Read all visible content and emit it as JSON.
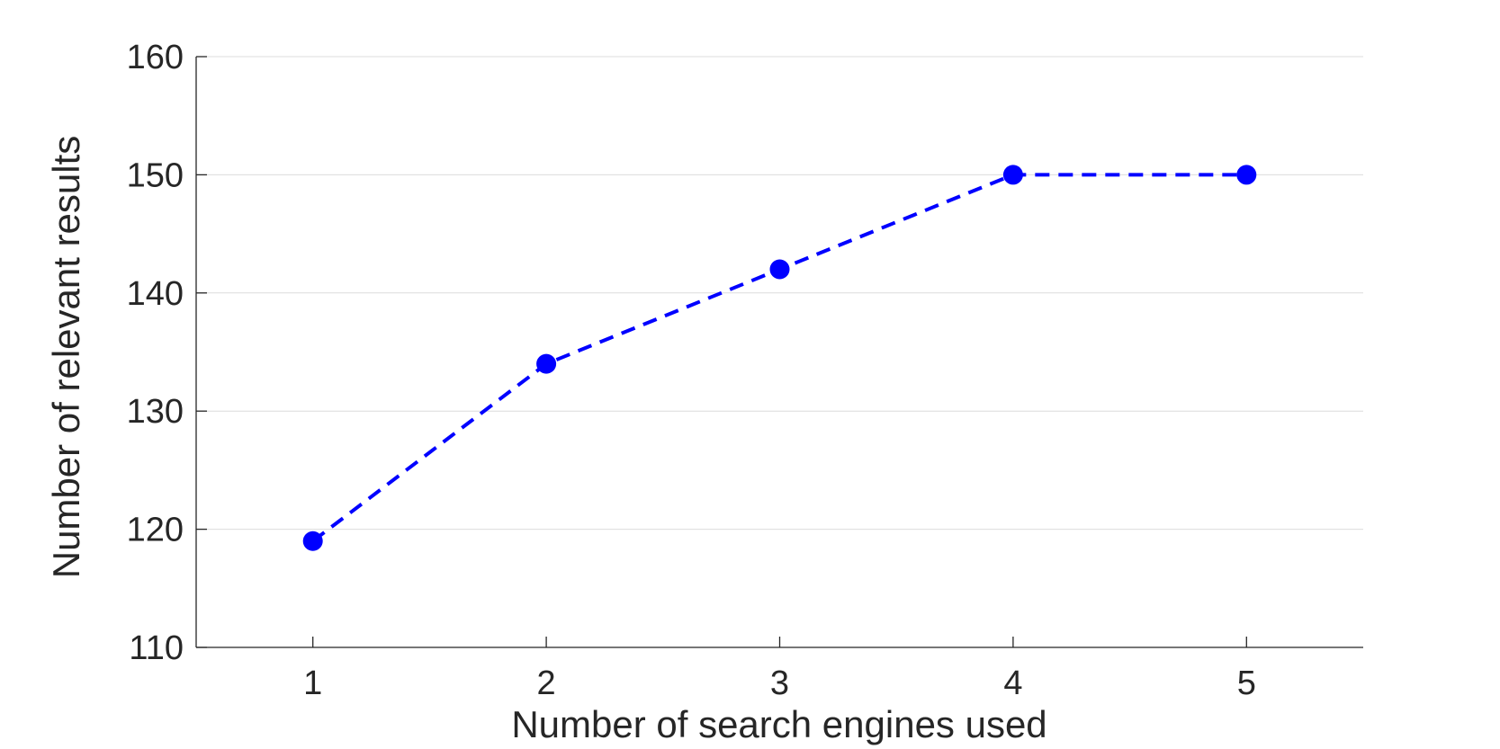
{
  "chart_data": {
    "type": "line",
    "title": "",
    "xlabel": "Number of search engines used",
    "ylabel": "Number of relevant results",
    "x": [
      1,
      2,
      3,
      4,
      5
    ],
    "series": [
      {
        "values": [
          119,
          134,
          142,
          150,
          150
        ]
      }
    ],
    "xlim": [
      0.5,
      5.5
    ],
    "ylim": [
      110,
      160
    ],
    "xticks": [
      1,
      2,
      3,
      4,
      5
    ],
    "yticks": [
      110,
      120,
      130,
      140,
      150,
      160
    ],
    "grid": "horizontal",
    "line_style": "dashed",
    "marker": "filled-circle",
    "colors": {
      "series": "#0000ff",
      "axis": "#262626",
      "grid": "#dcdcdc"
    }
  }
}
